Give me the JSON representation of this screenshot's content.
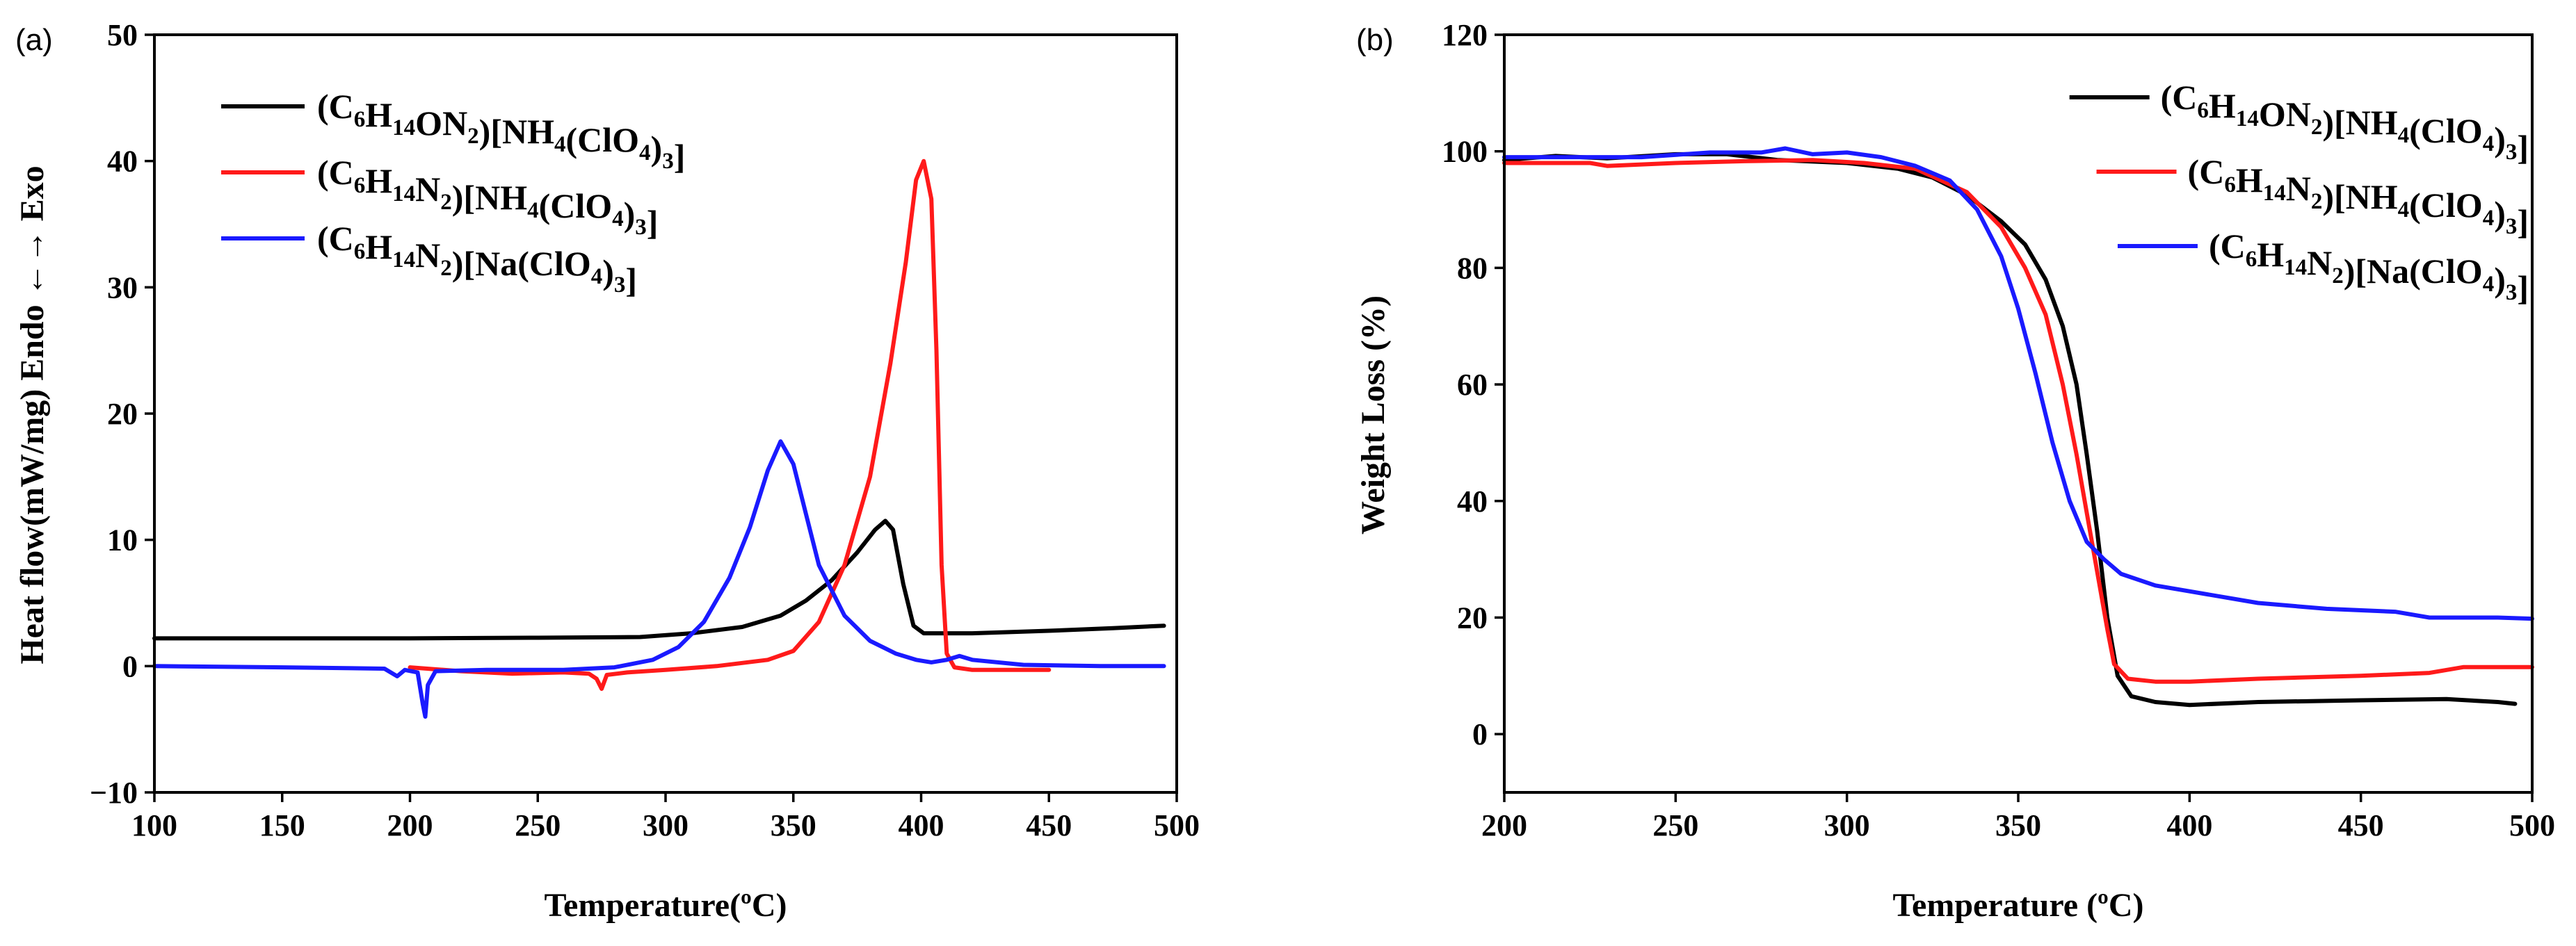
{
  "colors": {
    "black_series": "#000000",
    "red_series": "#ff1a1a",
    "blue_series": "#1a1aff"
  },
  "chart_data": [
    {
      "type": "line",
      "panel_label": "(a)",
      "xlabel": "Temperature(ºC)",
      "ylabel": "Heat flow(mW/mg) Endo ←→ Exo",
      "xlim": [
        100,
        500
      ],
      "ylim": [
        -10,
        50
      ],
      "xticks": [
        "100",
        "150",
        "200",
        "250",
        "300",
        "350",
        "400",
        "450",
        "500"
      ],
      "yticks": [
        "−10",
        "0",
        "10",
        "20",
        "30",
        "40",
        "50"
      ],
      "series": [
        {
          "name": "(C6H14ON2)[NH4(ClO4)3]",
          "legend": {
            "pre": "(C",
            "s1": "6",
            "m1": "H",
            "s2": "14",
            "m2": "ON",
            "s3": "2",
            "m3": ")[NH",
            "s4": "4",
            "m4": "(ClO",
            "s5": "4",
            "m5": ")",
            "s6": "3",
            "post": "]"
          },
          "color": "#000000",
          "points": [
            [
              100,
              2.2
            ],
            [
              150,
              2.2
            ],
            [
              200,
              2.2
            ],
            [
              250,
              2.25
            ],
            [
              290,
              2.3
            ],
            [
              310,
              2.6
            ],
            [
              330,
              3.1
            ],
            [
              345,
              4.0
            ],
            [
              355,
              5.2
            ],
            [
              365,
              6.8
            ],
            [
              375,
              9.0
            ],
            [
              382,
              10.8
            ],
            [
              386,
              11.5
            ],
            [
              389,
              10.8
            ],
            [
              393,
              6.5
            ],
            [
              397,
              3.2
            ],
            [
              401,
              2.6
            ],
            [
              420,
              2.6
            ],
            [
              450,
              2.8
            ],
            [
              475,
              3.0
            ],
            [
              495,
              3.2
            ]
          ]
        },
        {
          "name": "(C6H14N2)[NH4(ClO4)3]",
          "legend": {
            "pre": "(C",
            "s1": "6",
            "m1": "H",
            "s2": "14",
            "m2": "N",
            "s3": "2",
            "m3": ")[NH",
            "s4": "4",
            "m4": "(ClO",
            "s5": "4",
            "m5": ")",
            "s6": "3",
            "post": "]"
          },
          "color": "#ff1a1a",
          "points": [
            [
              200,
              -0.1
            ],
            [
              220,
              -0.4
            ],
            [
              240,
              -0.6
            ],
            [
              260,
              -0.5
            ],
            [
              270,
              -0.6
            ],
            [
              273,
              -1.0
            ],
            [
              275,
              -1.8
            ],
            [
              277,
              -0.7
            ],
            [
              285,
              -0.5
            ],
            [
              300,
              -0.3
            ],
            [
              320,
              0.0
            ],
            [
              340,
              0.5
            ],
            [
              350,
              1.2
            ],
            [
              360,
              3.5
            ],
            [
              370,
              8.0
            ],
            [
              380,
              15.0
            ],
            [
              388,
              24.0
            ],
            [
              394,
              32.0
            ],
            [
              398,
              38.5
            ],
            [
              401,
              40.0
            ],
            [
              404,
              37.0
            ],
            [
              406,
              25.0
            ],
            [
              408,
              8.0
            ],
            [
              410,
              1.0
            ],
            [
              413,
              -0.1
            ],
            [
              420,
              -0.3
            ],
            [
              450,
              -0.3
            ]
          ]
        },
        {
          "name": "(C6H14N2)[Na(ClO4)3]",
          "legend": {
            "pre": "(C",
            "s1": "6",
            "m1": "H",
            "s2": "14",
            "m2": "N",
            "s3": "2",
            "m3": ")[Na(ClO",
            "s4": "4",
            "m4": ")",
            "s5": "3",
            "m5": "]",
            "s6": "",
            "post": ""
          },
          "color": "#1a1aff",
          "points": [
            [
              100,
              0.0
            ],
            [
              150,
              -0.1
            ],
            [
              190,
              -0.2
            ],
            [
              195,
              -0.8
            ],
            [
              198,
              -0.3
            ],
            [
              203,
              -0.5
            ],
            [
              205,
              -3.0
            ],
            [
              206,
              -4.0
            ],
            [
              207,
              -1.5
            ],
            [
              210,
              -0.4
            ],
            [
              230,
              -0.3
            ],
            [
              260,
              -0.3
            ],
            [
              280,
              -0.1
            ],
            [
              295,
              0.5
            ],
            [
              305,
              1.5
            ],
            [
              315,
              3.5
            ],
            [
              325,
              7.0
            ],
            [
              333,
              11.0
            ],
            [
              340,
              15.5
            ],
            [
              345,
              17.8
            ],
            [
              350,
              16.0
            ],
            [
              355,
              12.0
            ],
            [
              360,
              8.0
            ],
            [
              370,
              4.0
            ],
            [
              380,
              2.0
            ],
            [
              390,
              1.0
            ],
            [
              398,
              0.5
            ],
            [
              404,
              0.3
            ],
            [
              410,
              0.5
            ],
            [
              415,
              0.8
            ],
            [
              420,
              0.5
            ],
            [
              440,
              0.1
            ],
            [
              470,
              0.0
            ],
            [
              495,
              0.0
            ]
          ]
        }
      ]
    },
    {
      "type": "line",
      "panel_label": "(b)",
      "xlabel": "Temperature (ºC)",
      "ylabel": "Weight Loss (%)",
      "xlim": [
        200,
        500
      ],
      "ylim": [
        -10,
        120
      ],
      "xticks": [
        "200",
        "250",
        "300",
        "350",
        "400",
        "450",
        "500"
      ],
      "yticks": [
        "0",
        "20",
        "40",
        "60",
        "80",
        "100",
        "120"
      ],
      "series": [
        {
          "name": "(C6H14ON2)[NH4(ClO4)3]",
          "legend": {
            "pre": "(C",
            "s1": "6",
            "m1": "H",
            "s2": "14",
            "m2": "ON",
            "s3": "2",
            "m3": ")[NH",
            "s4": "4",
            "m4": "(ClO",
            "s5": "4",
            "m5": ")",
            "s6": "3",
            "post": "]"
          },
          "color": "#000000",
          "points": [
            [
              200,
              98.5
            ],
            [
              215,
              99.2
            ],
            [
              230,
              98.8
            ],
            [
              250,
              99.5
            ],
            [
              265,
              99.5
            ],
            [
              280,
              98.5
            ],
            [
              300,
              98.0
            ],
            [
              315,
              97.0
            ],
            [
              325,
              95.5
            ],
            [
              335,
              92.5
            ],
            [
              345,
              88.0
            ],
            [
              352,
              84.0
            ],
            [
              358,
              78.0
            ],
            [
              363,
              70.0
            ],
            [
              367,
              60.0
            ],
            [
              370,
              48.0
            ],
            [
              373,
              35.0
            ],
            [
              376,
              20.0
            ],
            [
              379,
              10.0
            ],
            [
              383,
              6.5
            ],
            [
              390,
              5.5
            ],
            [
              400,
              5.0
            ],
            [
              420,
              5.5
            ],
            [
              450,
              5.8
            ],
            [
              475,
              6.0
            ],
            [
              490,
              5.5
            ],
            [
              495,
              5.2
            ]
          ]
        },
        {
          "name": "(C6H14N2)[NH4(ClO4)3]",
          "legend": {
            "pre": "(C",
            "s1": "6",
            "m1": "H",
            "s2": "14",
            "m2": "N",
            "s3": "2",
            "m3": ")[NH",
            "s4": "4",
            "m4": "(ClO",
            "s5": "4",
            "m5": ")",
            "s6": "3",
            "post": "]"
          },
          "color": "#ff1a1a",
          "points": [
            [
              200,
              98.0
            ],
            [
              225,
              98.0
            ],
            [
              230,
              97.5
            ],
            [
              250,
              98.0
            ],
            [
              270,
              98.3
            ],
            [
              290,
              98.5
            ],
            [
              305,
              98.0
            ],
            [
              320,
              97.0
            ],
            [
              335,
              93.0
            ],
            [
              345,
              87.0
            ],
            [
              352,
              80.0
            ],
            [
              358,
              72.0
            ],
            [
              363,
              60.0
            ],
            [
              367,
              48.0
            ],
            [
              370,
              38.0
            ],
            [
              373,
              28.0
            ],
            [
              376,
              18.0
            ],
            [
              378,
              12.0
            ],
            [
              382,
              9.5
            ],
            [
              390,
              9.0
            ],
            [
              400,
              9.0
            ],
            [
              420,
              9.5
            ],
            [
              450,
              10.0
            ],
            [
              470,
              10.5
            ],
            [
              480,
              11.5
            ],
            [
              500,
              11.5
            ]
          ]
        },
        {
          "name": "(C6H14N2)[Na(ClO4)3]",
          "legend": {
            "pre": "(C",
            "s1": "6",
            "m1": "H",
            "s2": "14",
            "m2": "N",
            "s3": "2",
            "m3": ")[Na(ClO",
            "s4": "4",
            "m4": ")",
            "s5": "3",
            "m5": "]",
            "s6": "",
            "post": ""
          },
          "color": "#1a1aff",
          "points": [
            [
              200,
              99.0
            ],
            [
              220,
              99.0
            ],
            [
              240,
              99.0
            ],
            [
              260,
              99.8
            ],
            [
              275,
              99.8
            ],
            [
              282,
              100.5
            ],
            [
              290,
              99.5
            ],
            [
              300,
              99.8
            ],
            [
              310,
              99.0
            ],
            [
              320,
              97.5
            ],
            [
              330,
              95.0
            ],
            [
              338,
              90.0
            ],
            [
              345,
              82.0
            ],
            [
              350,
              73.0
            ],
            [
              355,
              62.0
            ],
            [
              360,
              50.0
            ],
            [
              365,
              40.0
            ],
            [
              370,
              33.0
            ],
            [
              375,
              30.0
            ],
            [
              380,
              27.5
            ],
            [
              390,
              25.5
            ],
            [
              400,
              24.5
            ],
            [
              420,
              22.5
            ],
            [
              440,
              21.5
            ],
            [
              460,
              21.0
            ],
            [
              470,
              20.0
            ],
            [
              490,
              20.0
            ],
            [
              500,
              19.8
            ]
          ]
        }
      ]
    }
  ]
}
